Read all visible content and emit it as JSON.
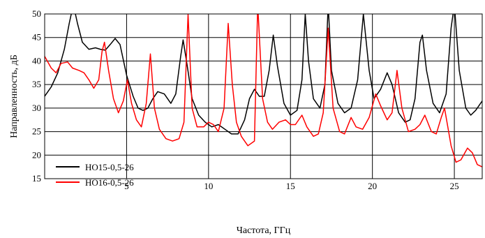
{
  "chart_data": {
    "type": "line",
    "title": "",
    "xlabel": "Частота, ГГц",
    "ylabel": "Направленность, дБ",
    "xlim": [
      0,
      26.7
    ],
    "ylim": [
      15,
      50
    ],
    "x_ticks": [
      5,
      10,
      15,
      20,
      25
    ],
    "y_ticks": [
      15,
      20,
      25,
      30,
      35,
      40,
      45,
      50
    ],
    "grid": true,
    "legend_position": "bottom-left",
    "series": [
      {
        "name": "НО15-0,5-26",
        "color": "#000000",
        "points": [
          [
            0.0,
            32.5
          ],
          [
            0.4,
            34.5
          ],
          [
            0.8,
            37.5
          ],
          [
            1.2,
            42.5
          ],
          [
            1.5,
            48
          ],
          [
            1.75,
            52
          ],
          [
            2.0,
            48
          ],
          [
            2.3,
            44
          ],
          [
            2.7,
            42.5
          ],
          [
            3.1,
            42.8
          ],
          [
            3.4,
            42.5
          ],
          [
            3.7,
            42.3
          ],
          [
            4.0,
            43.5
          ],
          [
            4.3,
            44.8
          ],
          [
            4.6,
            43.5
          ],
          [
            5.0,
            37
          ],
          [
            5.4,
            32.5
          ],
          [
            5.7,
            30
          ],
          [
            6.0,
            29.5
          ],
          [
            6.3,
            30
          ],
          [
            6.6,
            32
          ],
          [
            6.9,
            33.5
          ],
          [
            7.3,
            33
          ],
          [
            7.7,
            31
          ],
          [
            8.0,
            33
          ],
          [
            8.3,
            41
          ],
          [
            8.45,
            44.5
          ],
          [
            8.7,
            39
          ],
          [
            9.0,
            32
          ],
          [
            9.4,
            28.5
          ],
          [
            9.8,
            27
          ],
          [
            10.2,
            26
          ],
          [
            10.6,
            26.5
          ],
          [
            11.0,
            25.5
          ],
          [
            11.4,
            24.5
          ],
          [
            11.8,
            24.5
          ],
          [
            12.2,
            27.5
          ],
          [
            12.5,
            32
          ],
          [
            12.8,
            34
          ],
          [
            13.1,
            32.5
          ],
          [
            13.4,
            32.5
          ],
          [
            13.7,
            38
          ],
          [
            13.95,
            45.5
          ],
          [
            14.2,
            39
          ],
          [
            14.6,
            31
          ],
          [
            15.0,
            28.5
          ],
          [
            15.4,
            29.5
          ],
          [
            15.7,
            36
          ],
          [
            15.9,
            50
          ],
          [
            16.1,
            40
          ],
          [
            16.4,
            32
          ],
          [
            16.8,
            30
          ],
          [
            17.1,
            35
          ],
          [
            17.3,
            52
          ],
          [
            17.5,
            38
          ],
          [
            17.9,
            31
          ],
          [
            18.3,
            29
          ],
          [
            18.7,
            30
          ],
          [
            19.1,
            36
          ],
          [
            19.45,
            50
          ],
          [
            19.8,
            38
          ],
          [
            20.1,
            32
          ],
          [
            20.5,
            34
          ],
          [
            20.9,
            37.5
          ],
          [
            21.2,
            35
          ],
          [
            21.6,
            29
          ],
          [
            22.0,
            27
          ],
          [
            22.3,
            27.5
          ],
          [
            22.6,
            32
          ],
          [
            22.9,
            44
          ],
          [
            23.05,
            45.5
          ],
          [
            23.3,
            38
          ],
          [
            23.7,
            31
          ],
          [
            24.1,
            29
          ],
          [
            24.5,
            33
          ],
          [
            24.8,
            47
          ],
          [
            25.0,
            52
          ],
          [
            25.3,
            38
          ],
          [
            25.7,
            30
          ],
          [
            26.0,
            28.5
          ],
          [
            26.3,
            29.5
          ],
          [
            26.7,
            31.5
          ]
        ]
      },
      {
        "name": "НО16-0,5-26",
        "color": "#ff0000",
        "points": [
          [
            0.0,
            41
          ],
          [
            0.4,
            38.5
          ],
          [
            0.7,
            37.5
          ],
          [
            1.0,
            39.5
          ],
          [
            1.4,
            39.8
          ],
          [
            1.7,
            38.5
          ],
          [
            2.1,
            38
          ],
          [
            2.4,
            37.5
          ],
          [
            2.7,
            36
          ],
          [
            3.0,
            34.2
          ],
          [
            3.3,
            36
          ],
          [
            3.5,
            42
          ],
          [
            3.65,
            44
          ],
          [
            3.9,
            38
          ],
          [
            4.2,
            32
          ],
          [
            4.5,
            29
          ],
          [
            4.8,
            31.5
          ],
          [
            5.05,
            36
          ],
          [
            5.3,
            31
          ],
          [
            5.6,
            27.5
          ],
          [
            5.9,
            26
          ],
          [
            6.2,
            31
          ],
          [
            6.45,
            41.5
          ],
          [
            6.7,
            30
          ],
          [
            7.0,
            25.5
          ],
          [
            7.4,
            23.5
          ],
          [
            7.8,
            23
          ],
          [
            8.2,
            23.5
          ],
          [
            8.5,
            27
          ],
          [
            8.75,
            50
          ],
          [
            9.0,
            30
          ],
          [
            9.3,
            26
          ],
          [
            9.7,
            26
          ],
          [
            10.0,
            27
          ],
          [
            10.3,
            26.5
          ],
          [
            10.6,
            25
          ],
          [
            10.95,
            30
          ],
          [
            11.2,
            48
          ],
          [
            11.45,
            35
          ],
          [
            11.7,
            27
          ],
          [
            12.0,
            24
          ],
          [
            12.4,
            22
          ],
          [
            12.8,
            23
          ],
          [
            13.0,
            52
          ],
          [
            13.3,
            32
          ],
          [
            13.6,
            27
          ],
          [
            13.9,
            25.5
          ],
          [
            14.3,
            27
          ],
          [
            14.7,
            27.5
          ],
          [
            15.0,
            26.5
          ],
          [
            15.3,
            26.5
          ],
          [
            15.7,
            28.5
          ],
          [
            16.0,
            26
          ],
          [
            16.4,
            24
          ],
          [
            16.7,
            24.5
          ],
          [
            17.0,
            29
          ],
          [
            17.3,
            47
          ],
          [
            17.6,
            30
          ],
          [
            18.0,
            25
          ],
          [
            18.3,
            24.5
          ],
          [
            18.7,
            28
          ],
          [
            19.0,
            26
          ],
          [
            19.4,
            25.5
          ],
          [
            19.8,
            28
          ],
          [
            20.2,
            33
          ],
          [
            20.5,
            30.5
          ],
          [
            20.9,
            27.5
          ],
          [
            21.2,
            29
          ],
          [
            21.5,
            38
          ],
          [
            21.8,
            30
          ],
          [
            22.2,
            25
          ],
          [
            22.6,
            25.5
          ],
          [
            22.9,
            26.5
          ],
          [
            23.2,
            28.5
          ],
          [
            23.6,
            25
          ],
          [
            23.9,
            24.5
          ],
          [
            24.2,
            28
          ],
          [
            24.4,
            30
          ],
          [
            24.6,
            26
          ],
          [
            24.8,
            22
          ],
          [
            25.1,
            18.5
          ],
          [
            25.4,
            19
          ],
          [
            25.8,
            21.5
          ],
          [
            26.1,
            20.5
          ],
          [
            26.4,
            18
          ],
          [
            26.7,
            17.5
          ]
        ]
      }
    ]
  }
}
